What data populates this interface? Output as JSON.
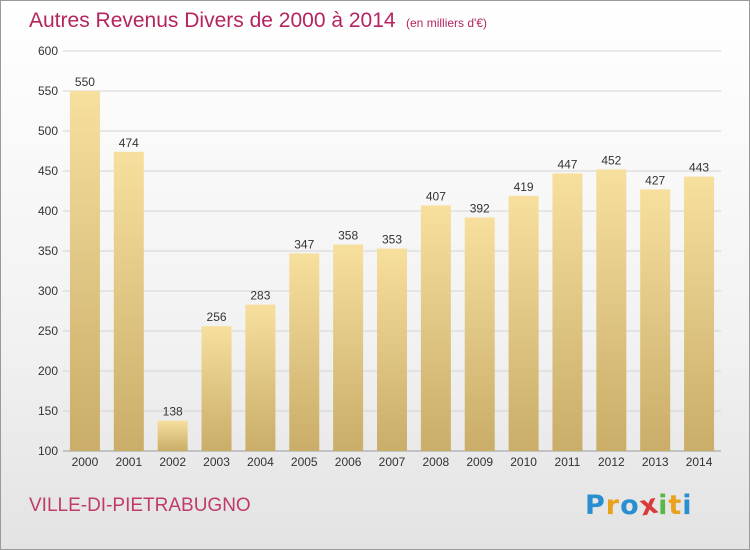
{
  "chart_data": {
    "type": "bar",
    "title": "Autres Revenus Divers de 2000 à 2014",
    "subtitle": "(en milliers d'€)",
    "categories": [
      "2000",
      "2001",
      "2002",
      "2003",
      "2004",
      "2005",
      "2006",
      "2007",
      "2008",
      "2009",
      "2010",
      "2011",
      "2012",
      "2013",
      "2014"
    ],
    "values": [
      550,
      474,
      138,
      256,
      283,
      347,
      358,
      353,
      407,
      392,
      419,
      447,
      452,
      427,
      443
    ],
    "ylim": [
      100,
      600
    ],
    "yticks": [
      100,
      150,
      200,
      250,
      300,
      350,
      400,
      450,
      500,
      550,
      600
    ],
    "grid": true,
    "bar_color": "#e6c882",
    "label": "VILLE-DI-PIETRABUGNO"
  },
  "logo": {
    "letters": [
      "P",
      "r",
      "o",
      "x",
      "i",
      "t",
      "i"
    ],
    "colors": [
      "#2a8fd0",
      "#e8a21c",
      "#2a8fd0",
      "#d93a3a",
      "#5ab847",
      "#e8a21c",
      "#2a8fd0"
    ]
  }
}
